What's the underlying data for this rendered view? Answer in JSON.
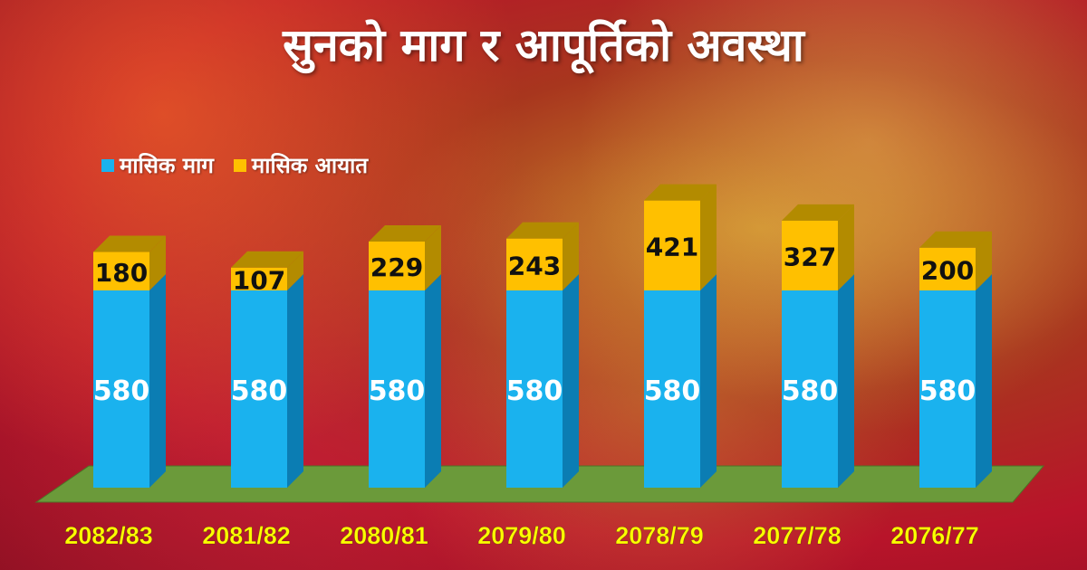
{
  "title": "सुनको माग र आपूर्तिको अवस्था",
  "legend": {
    "demand": "मासिक माग",
    "import": "मासिक आयात"
  },
  "colors": {
    "demand_front": "#1ab2ee",
    "demand_side": "#0b7db3",
    "import_front": "#ffc000",
    "import_side": "#b38b00",
    "floor": "#6b9a3a",
    "label_text_demand": "#ffffff",
    "label_text_import": "#111111",
    "category_text": "#ffff00"
  },
  "chart_data": {
    "type": "bar",
    "stacked": true,
    "three_d": true,
    "title": "सुनको माग र आपूर्तिको अवस्था",
    "categories": [
      "2082/83",
      "2081/82",
      "2080/81",
      "2079/80",
      "2078/79",
      "2077/78",
      "2076/77"
    ],
    "series": [
      {
        "name": "मासिक माग",
        "values": [
          580,
          580,
          580,
          580,
          580,
          580,
          580
        ]
      },
      {
        "name": "मासिक आयात",
        "values": [
          180,
          107,
          229,
          243,
          421,
          327,
          200
        ]
      }
    ],
    "legend_position": "top-left",
    "grid": false
  }
}
